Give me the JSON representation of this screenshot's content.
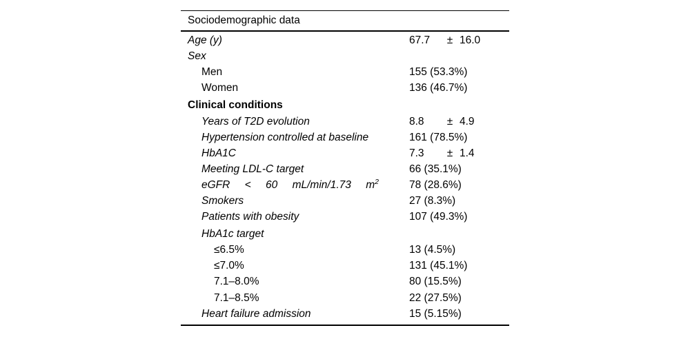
{
  "table": {
    "title": "Sociodemographic data",
    "colors": {
      "text": "#000000",
      "rule": "#000000",
      "background": "#ffffff"
    },
    "plus_minus_symbol": "±",
    "rows": [
      {
        "label": "Age (y)",
        "indent": 0,
        "style": "italic",
        "value_type": "pm",
        "value_a": "67.7",
        "value_b": "16.0"
      },
      {
        "label": "Sex",
        "indent": 0,
        "style": "italic",
        "value_type": "none"
      },
      {
        "label": "Men",
        "indent": 1,
        "style": "regular",
        "value_type": "text",
        "value": "155 (53.3%)"
      },
      {
        "label": "Women",
        "indent": 1,
        "style": "regular",
        "value_type": "text",
        "value": "136 (46.7%)"
      },
      {
        "label": "Clinical conditions",
        "indent": 0,
        "style": "bold",
        "value_type": "none",
        "gap_before": true
      },
      {
        "label": "Years of T2D evolution",
        "indent": 1,
        "style": "italic",
        "value_type": "pm",
        "value_a": "8.8",
        "value_b": "4.9"
      },
      {
        "label": "Hypertension controlled at baseline",
        "indent": 1,
        "style": "italic",
        "value_type": "text",
        "value": "161 (78.5%)"
      },
      {
        "label": "HbA1C",
        "indent": 1,
        "style": "italic",
        "value_type": "pm",
        "value_a": "7.3",
        "value_b": "1.4"
      },
      {
        "label": "Meeting LDL-C target",
        "indent": 1,
        "style": "italic",
        "value_type": "text",
        "value": "66 (35.1%)"
      },
      {
        "label": "eGFR < 60 mL/min/1.73 m²",
        "label_words": [
          "eGFR",
          "<",
          "60",
          "mL/min/1.73",
          "m²"
        ],
        "justify": true,
        "indent": 1,
        "style": "italic",
        "value_type": "text",
        "value": "78 (28.6%)"
      },
      {
        "label": "Smokers",
        "indent": 1,
        "style": "italic",
        "value_type": "text",
        "value": "27 (8.3%)"
      },
      {
        "label": "Patients with obesity",
        "indent": 1,
        "style": "italic",
        "value_type": "text",
        "value": "107 (49.3%)"
      },
      {
        "label": "HbA1c target",
        "indent": 1,
        "style": "italic",
        "value_type": "none",
        "gap_before": true
      },
      {
        "label": "≤6.5%",
        "indent": 2,
        "style": "regular",
        "value_type": "text",
        "value": "13 (4.5%)"
      },
      {
        "label": "≤7.0%",
        "indent": 2,
        "style": "regular",
        "value_type": "text",
        "value": "131 (45.1%)"
      },
      {
        "label": "7.1–8.0%",
        "indent": 2,
        "style": "regular",
        "value_type": "text",
        "value": "80 (15.5%)"
      },
      {
        "label": "7.1–8.5%",
        "indent": 2,
        "style": "regular",
        "value_type": "text",
        "value": "22 (27.5%)"
      },
      {
        "label": "Heart failure admission",
        "indent": 1,
        "style": "italic",
        "value_type": "text",
        "value": "15 (5.15%)"
      }
    ]
  }
}
